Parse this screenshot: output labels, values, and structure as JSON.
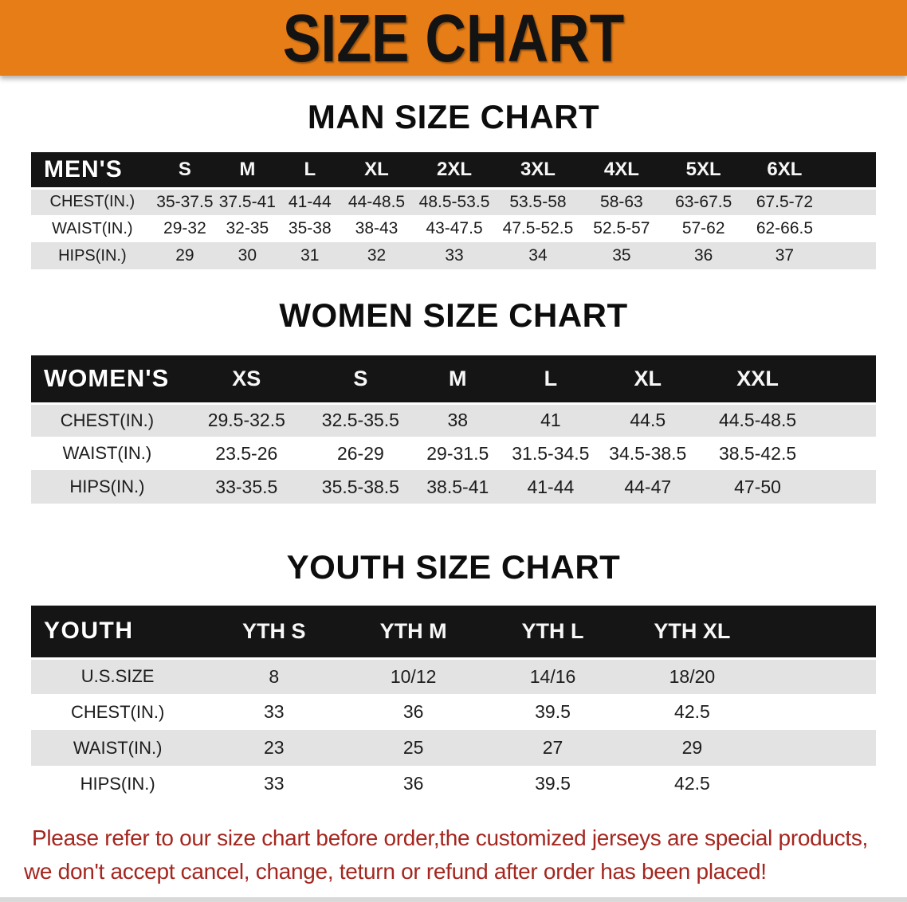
{
  "banner": {
    "title": "SIZE CHART"
  },
  "sections": [
    {
      "heading": "MAN SIZE CHART",
      "table": {
        "label": "MEN'S",
        "sizes": [
          "S",
          "M",
          "L",
          "XL",
          "2XL",
          "3XL",
          "4XL",
          "5XL",
          "6XL"
        ],
        "rows": [
          {
            "label": "CHEST(IN.)",
            "values": [
              "35-37.5",
              "37.5-41",
              "41-44",
              "44-48.5",
              "48.5-53.5",
              "53.5-58",
              "58-63",
              "63-67.5",
              "67.5-72"
            ]
          },
          {
            "label": "WAIST(IN.)",
            "values": [
              "29-32",
              "32-35",
              "35-38",
              "38-43",
              "43-47.5",
              "47.5-52.5",
              "52.5-57",
              "57-62",
              "62-66.5"
            ]
          },
          {
            "label": "HIPS(IN.)",
            "values": [
              "29",
              "30",
              "31",
              "32",
              "33",
              "34",
              "35",
              "36",
              "37"
            ]
          }
        ]
      }
    },
    {
      "heading": "WOMEN SIZE CHART",
      "table": {
        "label": "WOMEN'S",
        "sizes": [
          "XS",
          "S",
          "M",
          "L",
          "XL",
          "XXL"
        ],
        "rows": [
          {
            "label": "CHEST(IN.)",
            "values": [
              "29.5-32.5",
              "32.5-35.5",
              "38",
              "41",
              "44.5",
              "44.5-48.5"
            ]
          },
          {
            "label": "WAIST(IN.)",
            "values": [
              "23.5-26",
              "26-29",
              "29-31.5",
              "31.5-34.5",
              "34.5-38.5",
              "38.5-42.5"
            ]
          },
          {
            "label": "HIPS(IN.)",
            "values": [
              "33-35.5",
              "35.5-38.5",
              "38.5-41",
              "41-44",
              "44-47",
              "47-50"
            ]
          }
        ]
      }
    },
    {
      "heading": "YOUTH SIZE CHART",
      "table": {
        "label": "YOUTH",
        "sizes": [
          "YTH S",
          "YTH M",
          "YTH L",
          "YTH XL"
        ],
        "rows": [
          {
            "label": "U.S.SIZE",
            "values": [
              "8",
              "10/12",
              "14/16",
              "18/20"
            ]
          },
          {
            "label": "CHEST(IN.)",
            "values": [
              "33",
              "36",
              "39.5",
              "42.5"
            ]
          },
          {
            "label": "WAIST(IN.)",
            "values": [
              "23",
              "25",
              "27",
              "29"
            ]
          },
          {
            "label": "HIPS(IN.)",
            "values": [
              "33",
              "36",
              "39.5",
              "42.5"
            ]
          }
        ]
      }
    }
  ],
  "disclaimer": {
    "line1": "Please refer to our size chart before order,the customized jerseys are special products,",
    "line2": "we don't accept cancel, change, teturn or refund after order has been placed!"
  },
  "colors": {
    "banner_bg": "#E67D17",
    "banner_text": "#131313",
    "header_band_bg": "#151515",
    "header_band_text": "#F7F7F7",
    "row_alt_bg": "#E3E3E3",
    "row_bg": "#FFFFFF",
    "heading_text": "#0D0D0D",
    "disclaimer_text": "#A5261F"
  }
}
